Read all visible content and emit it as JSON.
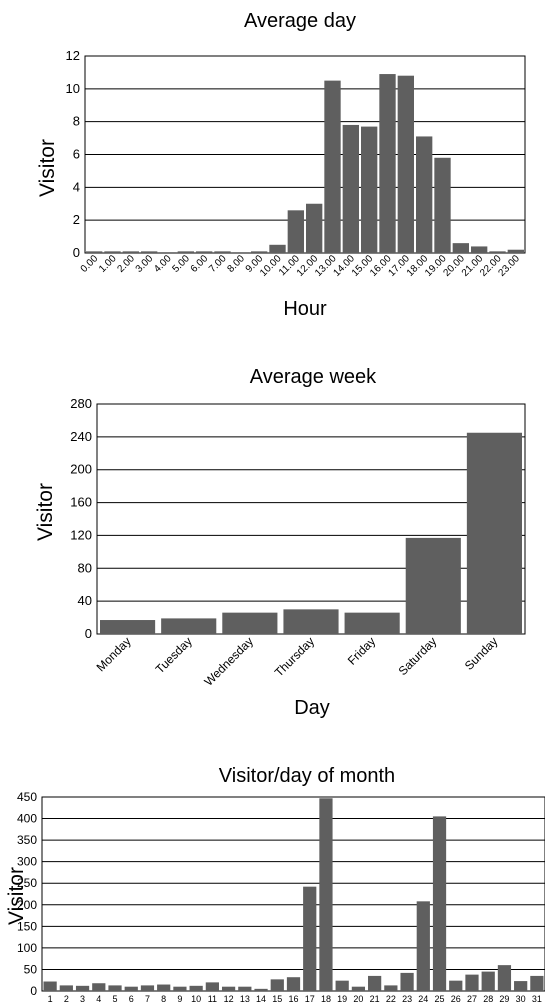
{
  "chart_data": [
    {
      "type": "bar",
      "title": "Average day",
      "xlabel": "Hour",
      "ylabel": "Visitor",
      "ylim": [
        0,
        12
      ],
      "yticks": [
        0,
        2,
        4,
        6,
        8,
        10,
        12
      ],
      "grid": true,
      "categories": [
        "0.00",
        "1.00",
        "2.00",
        "3.00",
        "4.00",
        "5.00",
        "6.00",
        "7.00",
        "8.00",
        "9.00",
        "10.00",
        "11.00",
        "12.00",
        "13.00",
        "14.00",
        "15.00",
        "16.00",
        "17.00",
        "18.00",
        "19.00",
        "20.00",
        "21.00",
        "22.00",
        "23.00"
      ],
      "values": [
        0.1,
        0.1,
        0.1,
        0.1,
        0.05,
        0.1,
        0.1,
        0.1,
        0.05,
        0.1,
        0.5,
        2.6,
        3.0,
        10.5,
        7.8,
        7.7,
        10.9,
        10.8,
        7.1,
        5.8,
        0.6,
        0.4,
        0.1,
        0.2
      ],
      "bar_color": "#5f5f5f"
    },
    {
      "type": "bar",
      "title": "Average week",
      "xlabel": "Day",
      "ylabel": "Visitor",
      "ylim": [
        0,
        280
      ],
      "yticks": [
        0,
        40,
        80,
        120,
        160,
        200,
        240,
        280
      ],
      "grid": true,
      "categories": [
        "Monday",
        "Tuesday",
        "Wednesday",
        "Thursday",
        "Friday",
        "Saturday",
        "Sunday"
      ],
      "values": [
        17,
        19,
        26,
        30,
        26,
        117,
        245
      ],
      "bar_color": "#5f5f5f"
    },
    {
      "type": "bar",
      "title": "Visitor/day of month",
      "xlabel": "",
      "ylabel": "Visitor",
      "ylim": [
        0,
        450
      ],
      "yticks": [
        0,
        50,
        100,
        150,
        200,
        250,
        300,
        350,
        400,
        450
      ],
      "grid": true,
      "categories": [
        "1",
        "2",
        "3",
        "4",
        "5",
        "6",
        "7",
        "8",
        "9",
        "10",
        "11",
        "12",
        "13",
        "14",
        "15",
        "16",
        "17",
        "18",
        "19",
        "20",
        "21",
        "22",
        "23",
        "24",
        "25",
        "26",
        "27",
        "28",
        "29",
        "30",
        "31"
      ],
      "values": [
        22,
        13,
        12,
        18,
        13,
        10,
        13,
        15,
        10,
        12,
        20,
        10,
        10,
        5,
        27,
        32,
        242,
        447,
        24,
        10,
        35,
        13,
        42,
        208,
        405,
        24,
        38,
        45,
        60,
        23,
        35
      ],
      "bar_color": "#5f5f5f"
    }
  ]
}
